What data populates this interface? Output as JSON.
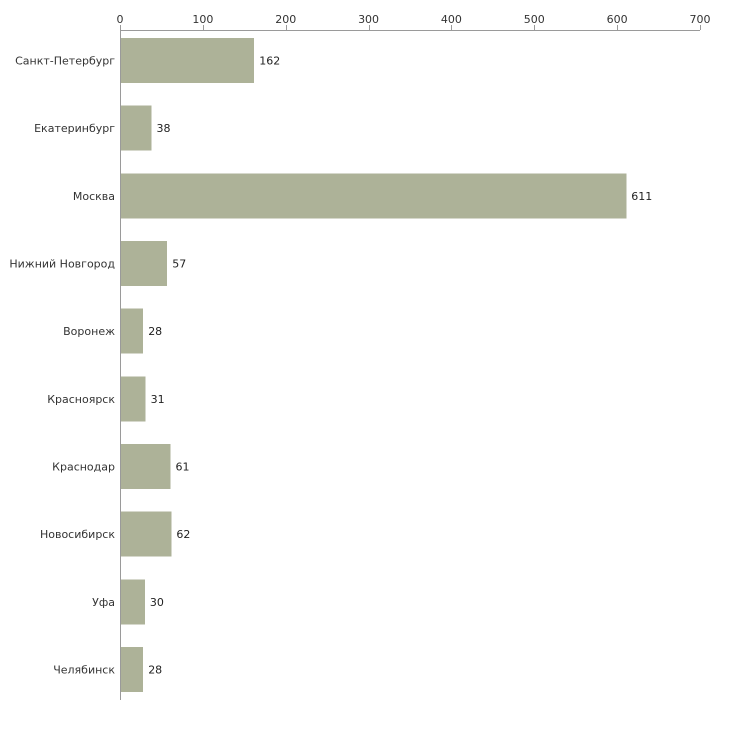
{
  "chart_data": {
    "type": "bar",
    "orientation": "horizontal",
    "title": "",
    "xlabel": "",
    "ylabel": "",
    "categories": [
      "Санкт-Петербург",
      "Екатеринбург",
      "Москва",
      "Нижний Новгород",
      "Воронеж",
      "Красноярск",
      "Краснодар",
      "Новосибирск",
      "Уфа",
      "Челябинск"
    ],
    "values": [
      162,
      38,
      611,
      57,
      28,
      31,
      61,
      62,
      30,
      28
    ],
    "value_labels": [
      "162",
      "38",
      "611",
      "57",
      "28",
      "31",
      "61",
      "62",
      "30",
      "28"
    ],
    "xlim": [
      0,
      700
    ],
    "ticks": [
      0,
      100,
      200,
      300,
      400,
      500,
      600,
      700
    ],
    "tick_labels": [
      "0",
      "100",
      "200",
      "300",
      "400",
      "500",
      "600",
      "700"
    ],
    "grid": false,
    "legend": "none",
    "bar_color": "#adb298",
    "axis_color": "#9a9a9a"
  }
}
